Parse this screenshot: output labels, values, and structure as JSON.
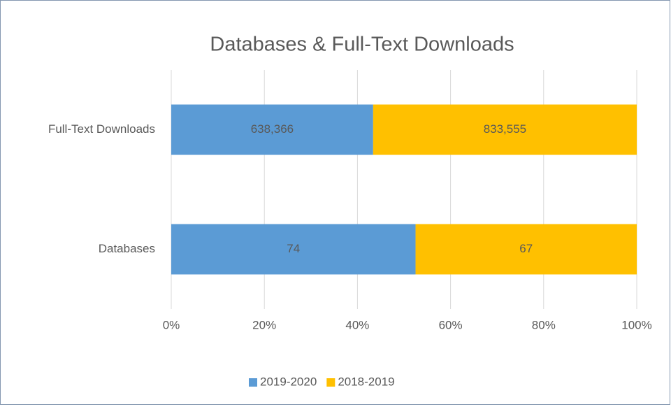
{
  "chart_data": {
    "type": "bar",
    "orientation": "horizontal",
    "stack": "percent",
    "title": "Databases & Full-Text Downloads",
    "categories": [
      "Databases",
      "Full-Text Downloads"
    ],
    "series": [
      {
        "name": "2019-2020",
        "color": "#5b9bd5",
        "values": [
          74,
          638366
        ],
        "value_labels": [
          "74",
          "638,366"
        ]
      },
      {
        "name": "2018-2019",
        "color": "#ffc000",
        "values": [
          67,
          833555
        ],
        "value_labels": [
          "67",
          "833,555"
        ]
      }
    ],
    "xlim": [
      0,
      100
    ],
    "xticks": [
      {
        "value": 0,
        "label": "0%"
      },
      {
        "value": 20,
        "label": "20%"
      },
      {
        "value": 40,
        "label": "40%"
      },
      {
        "value": 60,
        "label": "60%"
      },
      {
        "value": 80,
        "label": "80%"
      },
      {
        "value": 100,
        "label": "100%"
      }
    ],
    "grid": true,
    "legend": "bottom"
  }
}
